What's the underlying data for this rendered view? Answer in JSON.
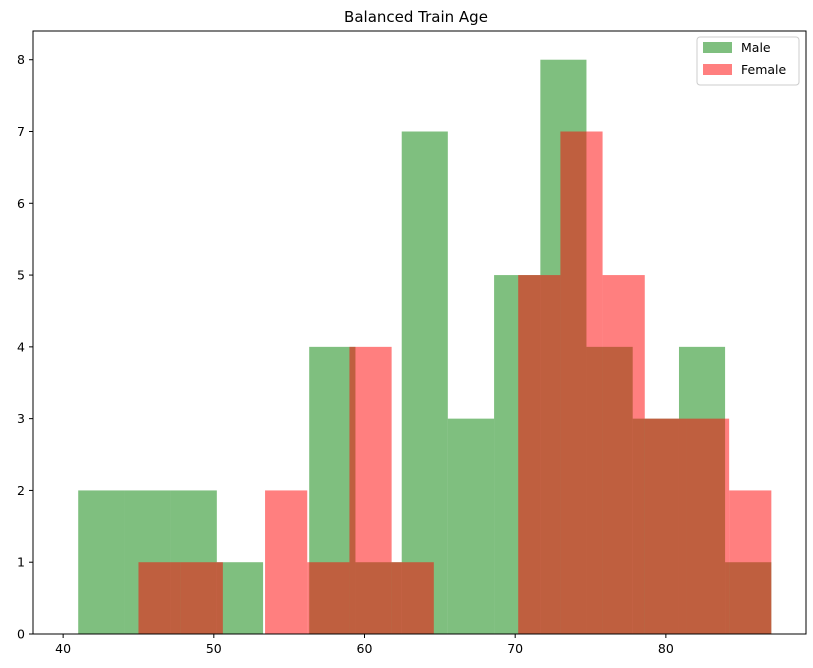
{
  "chart_data": {
    "type": "histogram",
    "title": "Balanced Train Age",
    "xlabel": "",
    "ylabel": "",
    "xlim": [
      38,
      89.3
    ],
    "ylim": [
      0,
      8.4
    ],
    "xticks": [
      40,
      50,
      60,
      70,
      80
    ],
    "yticks": [
      0,
      1,
      2,
      3,
      4,
      5,
      6,
      7,
      8
    ],
    "legend_position": "top-right",
    "series": [
      {
        "name": "Male",
        "color": "#008000",
        "opacity": 0.5,
        "bin_edges": [
          41.0,
          44.07,
          47.13,
          50.2,
          53.27,
          56.33,
          59.4,
          62.47,
          65.53,
          68.6,
          71.67,
          74.73,
          77.8,
          80.87,
          83.93,
          87.0
        ],
        "counts": [
          2,
          2,
          2,
          1,
          0,
          4,
          1,
          7,
          3,
          5,
          8,
          4,
          3,
          4,
          1
        ]
      },
      {
        "name": "Female",
        "color": "#ff0000",
        "opacity": 0.5,
        "bin_edges": [
          45.0,
          47.8,
          50.6,
          53.4,
          56.2,
          59.0,
          61.8,
          64.6,
          67.4,
          70.2,
          73.0,
          75.8,
          78.6,
          81.4,
          84.2,
          87.0
        ],
        "counts": [
          1,
          1,
          0,
          2,
          1,
          4,
          1,
          0,
          0,
          5,
          7,
          5,
          3,
          3,
          2
        ]
      }
    ]
  }
}
